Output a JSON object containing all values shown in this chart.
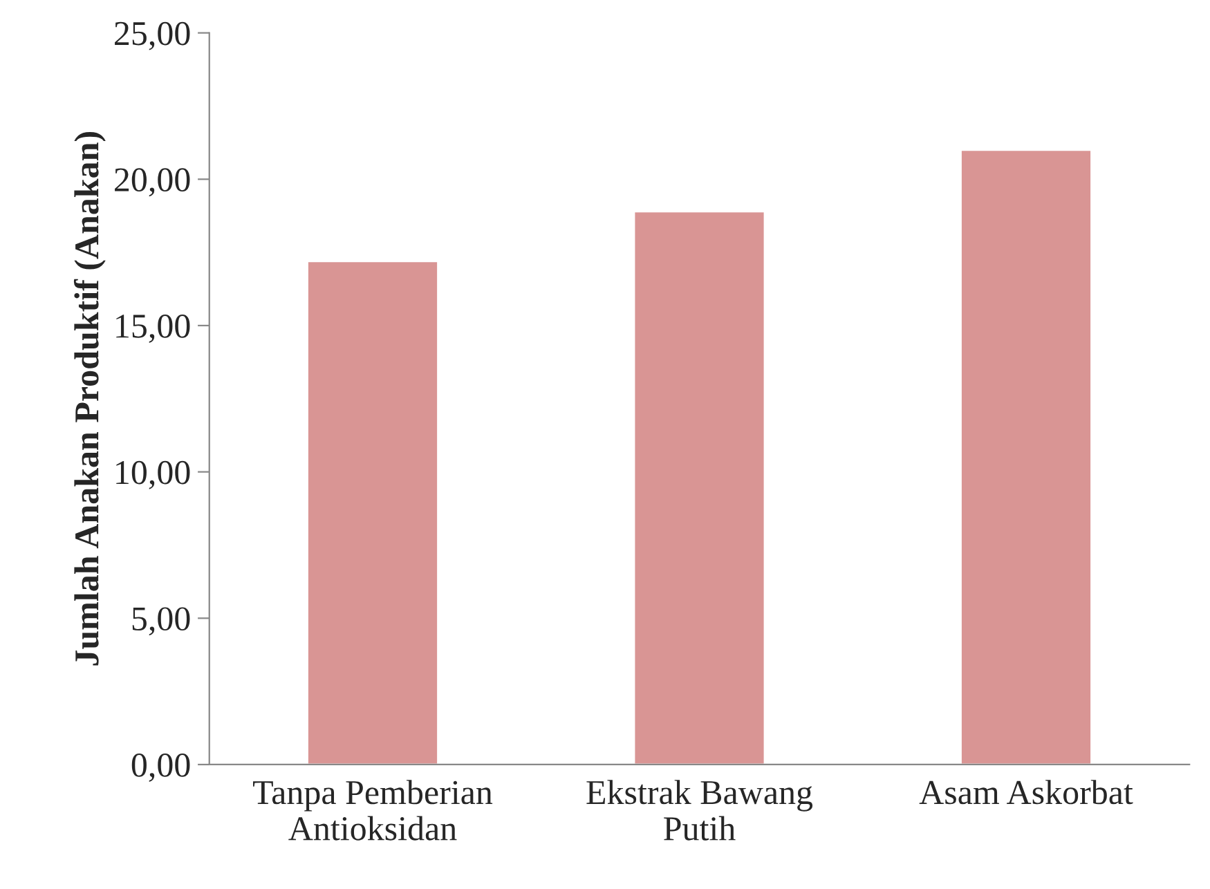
{
  "chart_data": {
    "type": "bar",
    "ylabel": "Jumlah Anakan Produktif (Anakan)",
    "categories": [
      "Tanpa Pemberian Antioksidan",
      "Ekstrak Bawang Putih",
      "Asam Askorbat"
    ],
    "values": [
      17.2,
      18.9,
      21.0
    ],
    "color": "#d99594",
    "ylim": [
      0,
      25
    ],
    "yticks": [
      {
        "value": 0,
        "label": "0,00"
      },
      {
        "value": 5,
        "label": "5,00"
      },
      {
        "value": 10,
        "label": "10,00"
      },
      {
        "value": 15,
        "label": "15,00"
      },
      {
        "value": 20,
        "label": "20,00"
      },
      {
        "value": 25,
        "label": "25,00"
      }
    ],
    "grid": false
  }
}
